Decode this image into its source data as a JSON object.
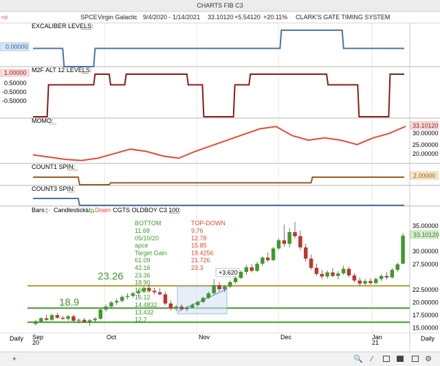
{
  "window_title": "CHARTS FIB C3",
  "header": {
    "symbol": "SPCE",
    "name": "Virgin Galactic",
    "date_range": "9/4/2020 - 1/14/2021",
    "price": "33.10120",
    "change": "+5.54120",
    "change_pct": "+20.11%",
    "system_title": "CLARK'S GATE TIMING SYSTEM"
  },
  "colors": {
    "blue": "#4a72a8",
    "darkred": "#8b1a10",
    "red": "#e8472c",
    "brown": "#9a5a1e",
    "green": "#3f9a2a",
    "olive": "#b59a2c"
  },
  "panels": {
    "excaliber": {
      "label": "EXCALIBER LEVELS:",
      "dash": "___",
      "value_badge": "0.00000",
      "values": [
        0,
        0,
        -1,
        -1,
        0,
        0,
        0,
        0,
        0,
        0,
        0,
        0,
        0,
        0,
        0,
        0,
        1,
        1,
        1,
        1,
        0,
        0,
        0,
        0
      ]
    },
    "m2f": {
      "label": "M2F ALT 12 LEVELS:",
      "dash": "__",
      "value_badge": "1.00000",
      "ticks": [
        "0.50000",
        "-0.50000",
        "-0.50000"
      ],
      "values": [
        -1,
        0.5,
        0.5,
        0.5,
        1,
        0.5,
        1,
        1,
        1,
        1,
        0.5,
        -1,
        -1,
        0.5,
        1,
        1,
        1,
        1,
        1,
        0.5,
        0.5,
        -1,
        -1,
        1
      ]
    },
    "momo": {
      "label": "MOMO:",
      "dash": "__",
      "value_badge": "33.10120",
      "ticks": [
        "30.00000",
        "25.00000",
        "20.00000"
      ],
      "values": [
        20.5,
        19.5,
        18.5,
        18,
        19,
        21,
        23,
        22,
        20,
        19,
        22,
        24.5,
        27,
        29.5,
        32,
        33,
        29,
        27,
        28,
        27,
        25,
        28,
        30,
        33.1
      ]
    },
    "count1": {
      "label": "COUNT1 SPIN:",
      "dash": "___",
      "value_badge": "2.00000",
      "values": [
        2,
        2,
        2,
        0,
        0,
        0.5,
        0.5,
        0.5,
        0.5,
        0.5,
        0.5,
        0.5,
        0.5,
        0.5,
        0.5,
        0.5,
        0.5,
        0.5,
        2,
        2,
        2,
        2,
        2,
        2
      ]
    },
    "count3": {
      "label": "COUNT3 SPIN:",
      "dash": "__",
      "values": [
        0,
        0,
        0,
        -2,
        -2,
        -2,
        -2,
        -2,
        -2,
        -2,
        -2,
        -2,
        -2,
        -2,
        -2,
        -2,
        -2,
        -2,
        -2,
        -2,
        -2,
        -2,
        -2,
        -2
      ]
    }
  },
  "main": {
    "legend": {
      "bars": "Bars:",
      "bars_sep": "|",
      "bars_dash": "-",
      "candles": "Candlesticks:",
      "up": "Up",
      "comma": ",",
      "down": "Down",
      "study": "CGTS OLDBOY  C3 100:",
      "study_dash": "___"
    },
    "y_ticks": [
      "35.00000",
      "30.00000",
      "27.50000",
      "22.50000",
      "20.00000",
      "17.50000",
      "15.00000"
    ],
    "price_badge": "33.10120",
    "x_labels": [
      "Sep",
      "20",
      "Oct",
      "Nov",
      "Dec",
      "Jan",
      "21"
    ],
    "timeframe": "Daily",
    "level_labels": [
      "23.26",
      "18.9"
    ],
    "levels": [
      23.26,
      18.9,
      16.12
    ],
    "measure_label": "+3.620",
    "table": {
      "bottom_header": "BOTTOM",
      "top_header": "TOP-DOWN",
      "bottom": [
        "11.68",
        "05/10/20",
        "apce",
        "Target Gain",
        "61.09",
        "42.16",
        "23.36",
        "18.90",
        "16.25",
        "16.12",
        "14.4832",
        "13.432",
        "12.7"
      ],
      "top": [
        "9.76",
        "12.78",
        "15.85",
        "19.4256",
        "21.726",
        "23.3"
      ]
    },
    "candles": [
      [
        15.8,
        16.6,
        15.5,
        16.3
      ],
      [
        16.3,
        17.1,
        16.0,
        16.9
      ],
      [
        16.9,
        17.6,
        16.3,
        16.6
      ],
      [
        16.6,
        17.8,
        16.4,
        17.5
      ],
      [
        17.5,
        18.0,
        16.8,
        17.0
      ],
      [
        17.0,
        17.3,
        16.5,
        16.8
      ],
      [
        16.8,
        17.5,
        16.4,
        17.3
      ],
      [
        17.3,
        17.6,
        16.2,
        16.4
      ],
      [
        16.4,
        16.9,
        15.9,
        16.6
      ],
      [
        16.6,
        17.0,
        16.0,
        16.2
      ],
      [
        16.2,
        16.8,
        15.4,
        16.5
      ],
      [
        16.5,
        17.1,
        16.2,
        16.8
      ],
      [
        16.8,
        18.8,
        16.6,
        18.6
      ],
      [
        18.6,
        19.6,
        18.2,
        19.2
      ],
      [
        19.2,
        20.3,
        18.9,
        20.0
      ],
      [
        20.0,
        20.8,
        19.5,
        20.3
      ],
      [
        20.3,
        21.4,
        20.0,
        21.1
      ],
      [
        21.1,
        21.8,
        20.6,
        21.3
      ],
      [
        21.3,
        22.1,
        20.9,
        21.8
      ],
      [
        21.8,
        22.5,
        21.2,
        22.2
      ],
      [
        22.2,
        23.1,
        21.9,
        22.8
      ],
      [
        22.8,
        23.6,
        22.0,
        22.3
      ],
      [
        22.3,
        22.9,
        21.6,
        22.0
      ],
      [
        22.0,
        22.8,
        21.4,
        21.6
      ],
      [
        21.6,
        22.1,
        19.5,
        19.8
      ],
      [
        19.8,
        20.4,
        18.4,
        18.8
      ],
      [
        18.8,
        19.5,
        18.3,
        19.2
      ],
      [
        19.2,
        19.7,
        18.5,
        18.7
      ],
      [
        18.7,
        19.3,
        18.3,
        19.0
      ],
      [
        19.0,
        19.8,
        18.8,
        19.5
      ],
      [
        19.5,
        20.3,
        19.2,
        20.1
      ],
      [
        20.1,
        21.1,
        19.9,
        20.9
      ],
      [
        20.9,
        22.1,
        20.7,
        21.8
      ],
      [
        21.8,
        24.6,
        21.6,
        23.4
      ],
      [
        23.4,
        24.0,
        22.2,
        22.6
      ],
      [
        22.6,
        23.4,
        22.0,
        23.1
      ],
      [
        23.1,
        24.3,
        22.9,
        24.0
      ],
      [
        24.0,
        25.1,
        23.7,
        24.8
      ],
      [
        24.8,
        26.3,
        24.6,
        26.0
      ],
      [
        26.0,
        27.4,
        25.4,
        26.9
      ],
      [
        26.9,
        27.5,
        25.9,
        26.2
      ],
      [
        26.2,
        28.0,
        26.0,
        27.6
      ],
      [
        27.6,
        29.1,
        27.2,
        28.8
      ],
      [
        28.8,
        29.8,
        27.9,
        28.3
      ],
      [
        28.3,
        30.9,
        28.1,
        30.6
      ],
      [
        30.6,
        32.6,
        30.3,
        32.2
      ],
      [
        32.2,
        35.3,
        30.9,
        31.5
      ],
      [
        31.5,
        34.6,
        30.8,
        33.8
      ],
      [
        33.8,
        35.8,
        32.6,
        33.0
      ],
      [
        33.0,
        34.1,
        30.2,
        30.8
      ],
      [
        30.8,
        31.5,
        28.0,
        28.6
      ],
      [
        28.6,
        29.4,
        26.4,
        26.8
      ],
      [
        26.8,
        27.6,
        25.2,
        25.6
      ],
      [
        25.6,
        26.4,
        24.6,
        25.1
      ],
      [
        25.1,
        26.3,
        24.7,
        25.9
      ],
      [
        25.9,
        26.8,
        24.9,
        25.2
      ],
      [
        25.2,
        26.1,
        24.5,
        25.7
      ],
      [
        25.7,
        27.2,
        25.4,
        26.6
      ],
      [
        26.6,
        27.0,
        24.9,
        25.3
      ],
      [
        25.3,
        25.8,
        23.9,
        24.3
      ],
      [
        24.3,
        24.9,
        23.3,
        23.7
      ],
      [
        23.7,
        24.6,
        23.4,
        24.2
      ],
      [
        24.2,
        24.8,
        23.5,
        23.8
      ],
      [
        23.8,
        24.9,
        23.6,
        24.6
      ],
      [
        24.6,
        25.5,
        24.2,
        25.2
      ],
      [
        25.2,
        25.9,
        24.5,
        24.9
      ],
      [
        24.9,
        26.7,
        24.7,
        26.4
      ],
      [
        26.4,
        27.8,
        26.0,
        27.5
      ],
      [
        27.6,
        33.6,
        27.5,
        33.1
      ]
    ]
  }
}
